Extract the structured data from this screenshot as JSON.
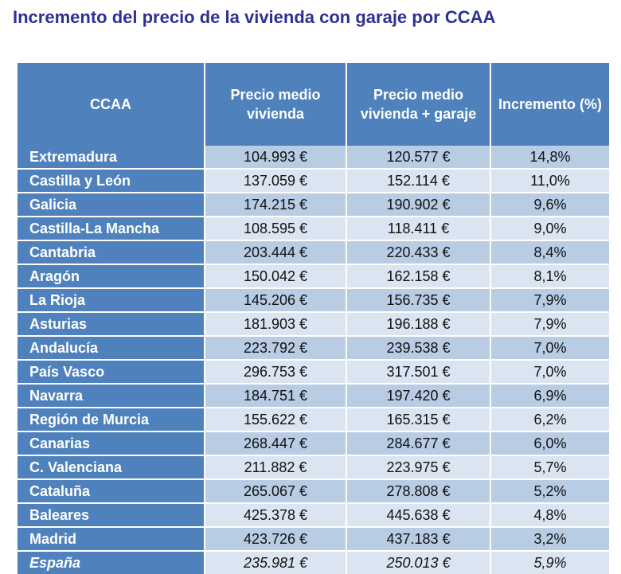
{
  "title": "Incremento del precio de la vivienda con garaje por CCAA",
  "colors": {
    "title": "#2e3192",
    "header_bg": "#4f81bd",
    "row_dark": "#b8cce4",
    "row_light": "#dbe5f1"
  },
  "table": {
    "headers": [
      "CCAA",
      "Precio medio vivienda",
      "Precio medio vivienda + garaje",
      "Incremento (%)"
    ],
    "rows": [
      [
        "Extremadura",
        "104.993 €",
        "120.577 €",
        "14,8%"
      ],
      [
        "Castilla y León",
        "137.059 €",
        "152.114 €",
        "11,0%"
      ],
      [
        "Galicia",
        "174.215 €",
        "190.902 €",
        "9,6%"
      ],
      [
        "Castilla-La Mancha",
        "108.595 €",
        "118.411 €",
        "9,0%"
      ],
      [
        "Cantabria",
        "203.444 €",
        "220.433 €",
        "8,4%"
      ],
      [
        "Aragón",
        "150.042 €",
        "162.158 €",
        "8,1%"
      ],
      [
        "La Rioja",
        "145.206 €",
        "156.735 €",
        "7,9%"
      ],
      [
        "Asturias",
        "181.903 €",
        "196.188 €",
        "7,9%"
      ],
      [
        "Andalucía",
        "223.792 €",
        "239.538 €",
        "7,0%"
      ],
      [
        "País Vasco",
        "296.753 €",
        "317.501 €",
        "7,0%"
      ],
      [
        "Navarra",
        "184.751 €",
        "197.420 €",
        "6,9%"
      ],
      [
        "Región de Murcia",
        "155.622 €",
        "165.315 €",
        "6,2%"
      ],
      [
        "Canarias",
        "268.447 €",
        "284.677 €",
        "6,0%"
      ],
      [
        "C. Valenciana",
        "211.882 €",
        "223.975 €",
        "5,7%"
      ],
      [
        "Cataluña",
        "265.067 €",
        "278.808 €",
        "5,2%"
      ],
      [
        "Baleares",
        "425.378 €",
        "445.638 €",
        "4,8%"
      ],
      [
        "Madrid",
        "423.726 €",
        "437.183 €",
        "3,2%"
      ]
    ],
    "total": [
      "España",
      "235.981 €",
      "250.013 €",
      "5,9%"
    ]
  }
}
